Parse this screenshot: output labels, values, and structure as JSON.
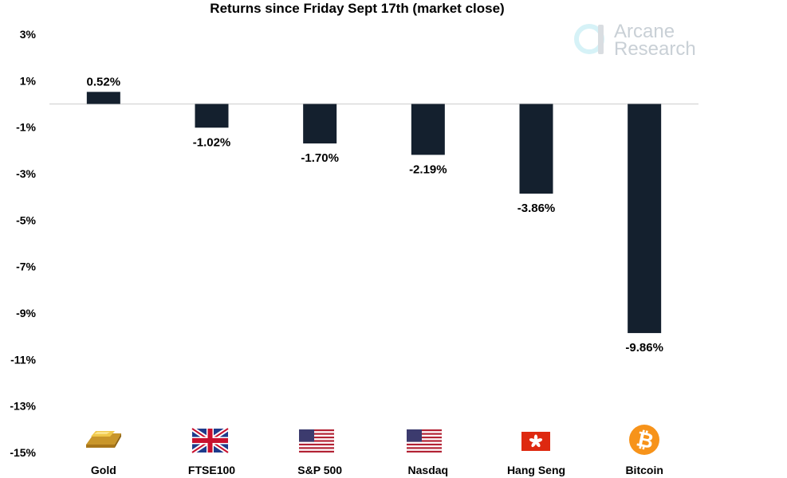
{
  "chart_data": {
    "type": "bar",
    "title": "Returns since Friday Sept 17th (market close)",
    "categories": [
      "Gold",
      "FTSE100",
      "S&P 500",
      "Nasdaq",
      "Hang Seng",
      "Bitcoin"
    ],
    "values": [
      0.52,
      -1.02,
      -1.7,
      -2.19,
      -3.86,
      -9.86
    ],
    "data_labels": [
      "0.52%",
      "-1.02%",
      "-1.70%",
      "-2.19%",
      "-3.86%",
      "-9.86%"
    ],
    "y_ticks": [
      3,
      1,
      -1,
      -3,
      -5,
      -7,
      -9,
      -11,
      -13,
      -15
    ],
    "y_tick_labels": [
      "3%",
      "1%",
      "-1%",
      "-3%",
      "-5%",
      "-7%",
      "-9%",
      "-11%",
      "-13%",
      "-15%"
    ],
    "ylim": [
      -15,
      3
    ],
    "xlabel": "",
    "ylabel": "",
    "grid": false,
    "bar_color": "#14202e",
    "baseline_color": "#d9d9d9",
    "category_icons": [
      "gold-bar-icon",
      "uk-flag-icon",
      "us-flag-icon",
      "us-flag-icon",
      "hong-kong-flag-icon",
      "bitcoin-icon"
    ]
  },
  "logo": {
    "line1": "Arcane",
    "line2": "Research",
    "color": "#c9d0d6"
  }
}
